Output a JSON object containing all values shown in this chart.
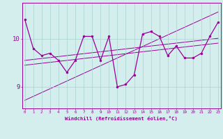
{
  "x": [
    0,
    1,
    2,
    3,
    4,
    5,
    6,
    7,
    8,
    9,
    10,
    11,
    12,
    13,
    14,
    15,
    16,
    17,
    18,
    19,
    20,
    21,
    22,
    23
  ],
  "y_main": [
    10.4,
    9.8,
    9.65,
    9.7,
    9.55,
    9.3,
    9.55,
    10.05,
    10.05,
    9.55,
    10.05,
    9.0,
    9.05,
    9.25,
    10.1,
    10.15,
    10.05,
    9.65,
    9.85,
    9.6,
    9.6,
    9.7,
    10.05,
    10.35
  ],
  "y_line1": [
    8.72,
    8.8,
    8.88,
    8.96,
    9.04,
    9.12,
    9.2,
    9.28,
    9.36,
    9.44,
    9.52,
    9.6,
    9.68,
    9.76,
    9.84,
    9.92,
    10.0,
    10.08,
    10.16,
    10.24,
    10.32,
    10.4,
    10.48,
    10.56
  ],
  "y_line2": [
    9.45,
    9.47,
    9.49,
    9.51,
    9.53,
    9.55,
    9.57,
    9.59,
    9.61,
    9.63,
    9.65,
    9.67,
    9.69,
    9.71,
    9.73,
    9.75,
    9.77,
    9.79,
    9.81,
    9.83,
    9.85,
    9.87,
    9.89,
    9.91
  ],
  "y_line3": [
    9.55,
    9.57,
    9.59,
    9.61,
    9.63,
    9.65,
    9.67,
    9.69,
    9.71,
    9.73,
    9.75,
    9.77,
    9.79,
    9.81,
    9.83,
    9.85,
    9.87,
    9.89,
    9.91,
    9.93,
    9.95,
    9.97,
    9.99,
    10.01
  ],
  "color": "#990099",
  "bg_color": "#d4eeee",
  "grid_color": "#aad0d0",
  "xlabel": "Windchill (Refroidissement éolien,°C)",
  "yticks": [
    9,
    10
  ],
  "xticks": [
    0,
    1,
    2,
    3,
    4,
    5,
    6,
    7,
    8,
    9,
    10,
    11,
    12,
    13,
    14,
    15,
    16,
    17,
    18,
    19,
    20,
    21,
    22,
    23
  ],
  "ylim": [
    8.55,
    10.75
  ],
  "xlim": [
    -0.3,
    23.3
  ]
}
